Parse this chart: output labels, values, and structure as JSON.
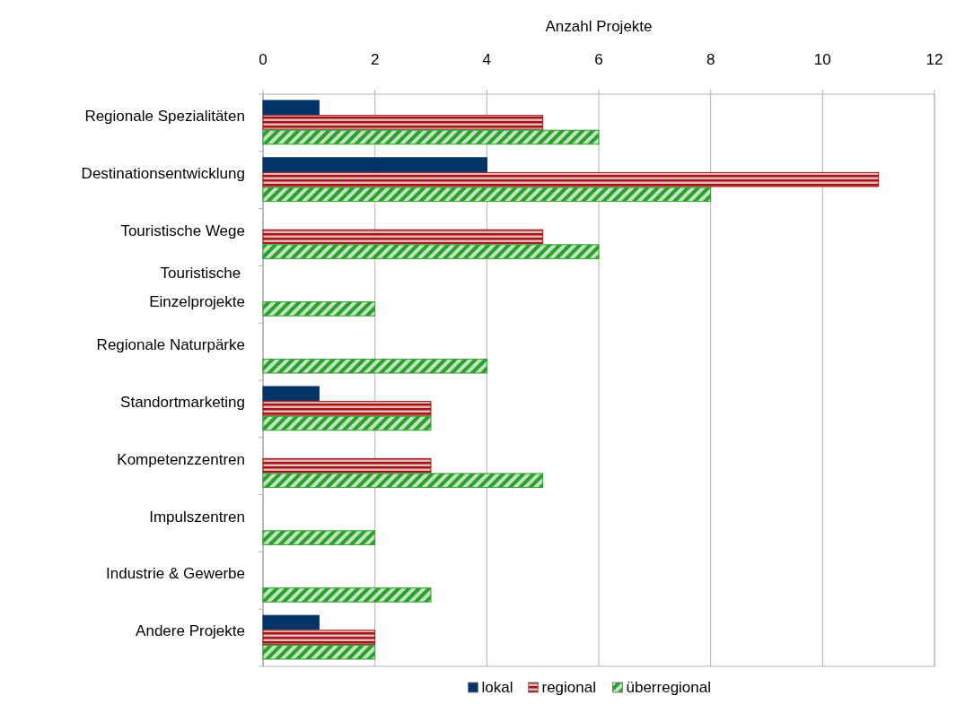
{
  "chart_data": {
    "type": "bar",
    "orientation": "horizontal",
    "xlabel": "Anzahl Projekte",
    "categories": [
      "Regionale Spezialitäten",
      "Destinationsentwicklung",
      "Touristische Wege",
      "Touristische \nEinzelprojekte",
      "Regionale Naturpärke",
      "Standortmarketing",
      "Kompetenzzentren",
      "Impulszentren",
      "Industrie & Gewerbe",
      "Andere Projekte"
    ],
    "series": [
      {
        "name": "lokal",
        "color": "#003366",
        "values": [
          1,
          4,
          null,
          null,
          null,
          1,
          null,
          null,
          null,
          1
        ]
      },
      {
        "name": "regional",
        "color": "#a31515",
        "values": [
          5,
          11,
          5,
          null,
          null,
          3,
          3,
          null,
          null,
          2
        ]
      },
      {
        "name": "überregional",
        "color": "#2ca02c",
        "values": [
          6,
          8,
          6,
          2,
          4,
          3,
          5,
          2,
          3,
          2
        ]
      }
    ],
    "xlim": [
      0,
      12
    ],
    "xticks": [
      0,
      2,
      4,
      6,
      8,
      10,
      12
    ],
    "grid": "x",
    "legend": "bottom"
  }
}
